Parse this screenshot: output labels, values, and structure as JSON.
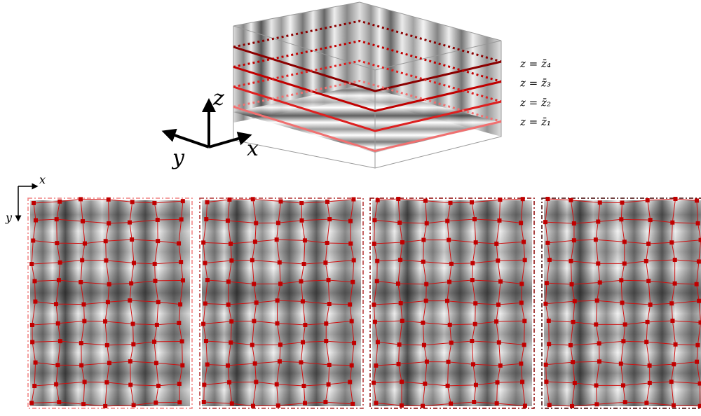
{
  "axes_3d": {
    "x": "x",
    "y": "y",
    "z": "z"
  },
  "planes": [
    {
      "label": "z = z̄₄"
    },
    {
      "label": "z = z̄₃"
    },
    {
      "label": "z = z̄₂"
    },
    {
      "label": "z = z̄₁"
    }
  ],
  "image_axes": {
    "x": "x",
    "y": "y"
  }
}
